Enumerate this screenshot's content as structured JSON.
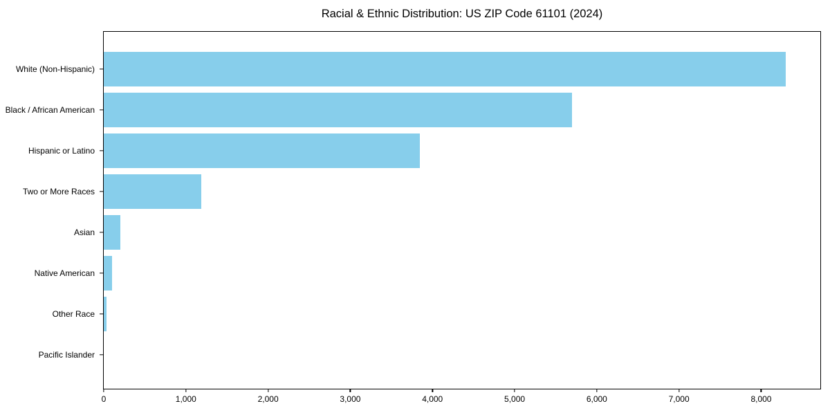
{
  "chart_data": {
    "type": "bar",
    "orientation": "horizontal",
    "title": "Racial & Ethnic Distribution: US ZIP Code 61101 (2024)",
    "categories": [
      "White (Non-Hispanic)",
      "Black / African American",
      "Hispanic or Latino",
      "Two or More Races",
      "Asian",
      "Native American",
      "Other Race",
      "Pacific Islander"
    ],
    "values": [
      8300,
      5700,
      3845,
      1185,
      200,
      100,
      35,
      0
    ],
    "xlabel": "",
    "ylabel": "",
    "xlim": [
      0,
      8720
    ],
    "x_ticks": [
      0,
      1000,
      2000,
      3000,
      4000,
      5000,
      6000,
      7000,
      8000
    ],
    "x_tick_labels": [
      "0",
      "1,000",
      "2,000",
      "3,000",
      "4,000",
      "5,000",
      "6,000",
      "7,000",
      "8,000"
    ],
    "bar_color": "#87CEEB",
    "axis_color": "#000000",
    "background_color": "#ffffff",
    "grid": false,
    "legend": null
  }
}
